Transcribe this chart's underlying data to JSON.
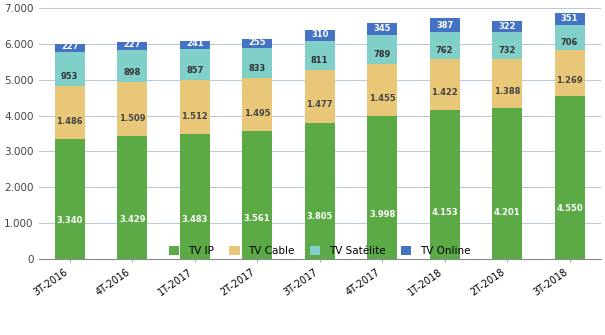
{
  "categories": [
    "3T-2016",
    "4T-2016",
    "1T-2017",
    "2T-2017",
    "3T-2017",
    "4T-2017",
    "1T-2018",
    "2T-2018",
    "3T-2018"
  ],
  "tv_ip": [
    3340,
    3429,
    3483,
    3561,
    3805,
    3998,
    4153,
    4201,
    4550
  ],
  "tv_cable": [
    1486,
    1509,
    1512,
    1495,
    1477,
    1455,
    1422,
    1388,
    1269
  ],
  "tv_satelite": [
    953,
    898,
    857,
    833,
    811,
    789,
    762,
    732,
    706
  ],
  "tv_online": [
    227,
    227,
    241,
    255,
    310,
    345,
    387,
    322,
    351
  ],
  "labels_ip": [
    "3.340",
    "3.429",
    "3.483",
    "3.561",
    "3.805",
    "3.998",
    "4.153",
    "4.201",
    "4.550"
  ],
  "labels_cable": [
    "1.486",
    "1.509",
    "1.512",
    "1.495",
    "1.477",
    "1.455",
    "1.422",
    "1.388",
    "1.269"
  ],
  "labels_satelite": [
    "953",
    "898",
    "857",
    "833",
    "811",
    "789",
    "762",
    "732",
    "706"
  ],
  "labels_online": [
    "227",
    "227",
    "241",
    "255",
    "310",
    "345",
    "387",
    "322",
    "351"
  ],
  "color_ip": "#5baa46",
  "color_cable": "#e8c878",
  "color_satelite": "#80cfc8",
  "color_online": "#4472c4",
  "ylim": [
    0,
    7000
  ],
  "yticks": [
    0,
    1000,
    2000,
    3000,
    4000,
    5000,
    6000,
    7000
  ],
  "ytick_labels": [
    "0",
    "1.000",
    "2.000",
    "3.000",
    "4.000",
    "5.000",
    "6.000",
    "7.000"
  ],
  "legend_labels": [
    "TV IP",
    "TV Cable",
    "TV Satélite",
    "TV Online"
  ],
  "background_color": "#ffffff",
  "grid_color": "#b8c8d8"
}
